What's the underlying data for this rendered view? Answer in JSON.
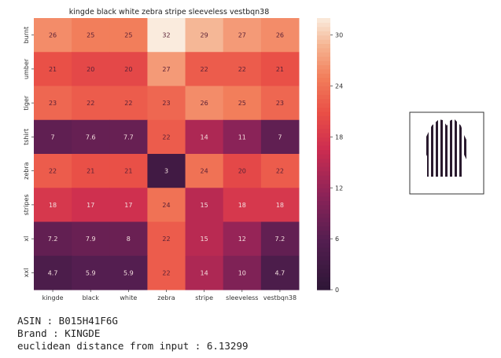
{
  "chart_data": {
    "type": "heatmap",
    "title": "kingde black white zebra stripe sleeveless vestbqn38",
    "columns": [
      "kingde",
      "black",
      "white",
      "zebra",
      "stripe",
      "sleeveless",
      "vestbqn38"
    ],
    "rows": [
      "burnt",
      "umber",
      "tiger",
      "tshirt",
      "zebra",
      "stripes",
      "xl",
      "xxl"
    ],
    "values": [
      [
        26,
        25,
        25,
        32,
        29,
        27,
        26
      ],
      [
        21,
        20,
        20,
        27,
        22,
        22,
        21
      ],
      [
        23,
        22,
        22,
        23,
        26,
        25,
        23
      ],
      [
        7,
        7.6,
        7.7,
        22,
        14,
        11,
        7
      ],
      [
        22,
        21,
        21,
        3,
        24,
        20,
        22
      ],
      [
        18,
        17,
        17,
        24,
        15,
        18,
        18
      ],
      [
        7.2,
        7.9,
        8,
        22,
        15,
        12,
        7.2
      ],
      [
        4.7,
        5.9,
        5.9,
        22,
        14,
        10,
        4.7
      ]
    ],
    "colorbar": {
      "min": 0,
      "max": 32,
      "ticks": [
        0,
        6,
        12,
        18,
        24,
        30
      ]
    },
    "colormap": "rocket",
    "grid": false
  },
  "info": {
    "line1": "ASIN : B015H41F6G",
    "line2": "Brand : KINGDE",
    "line3": "euclidean distance from input : 6.13299"
  },
  "thumbnail": {
    "icon": "striped-sleeveless-vest-image",
    "colors": [
      "#2a1a2e",
      "#ffffff"
    ]
  }
}
